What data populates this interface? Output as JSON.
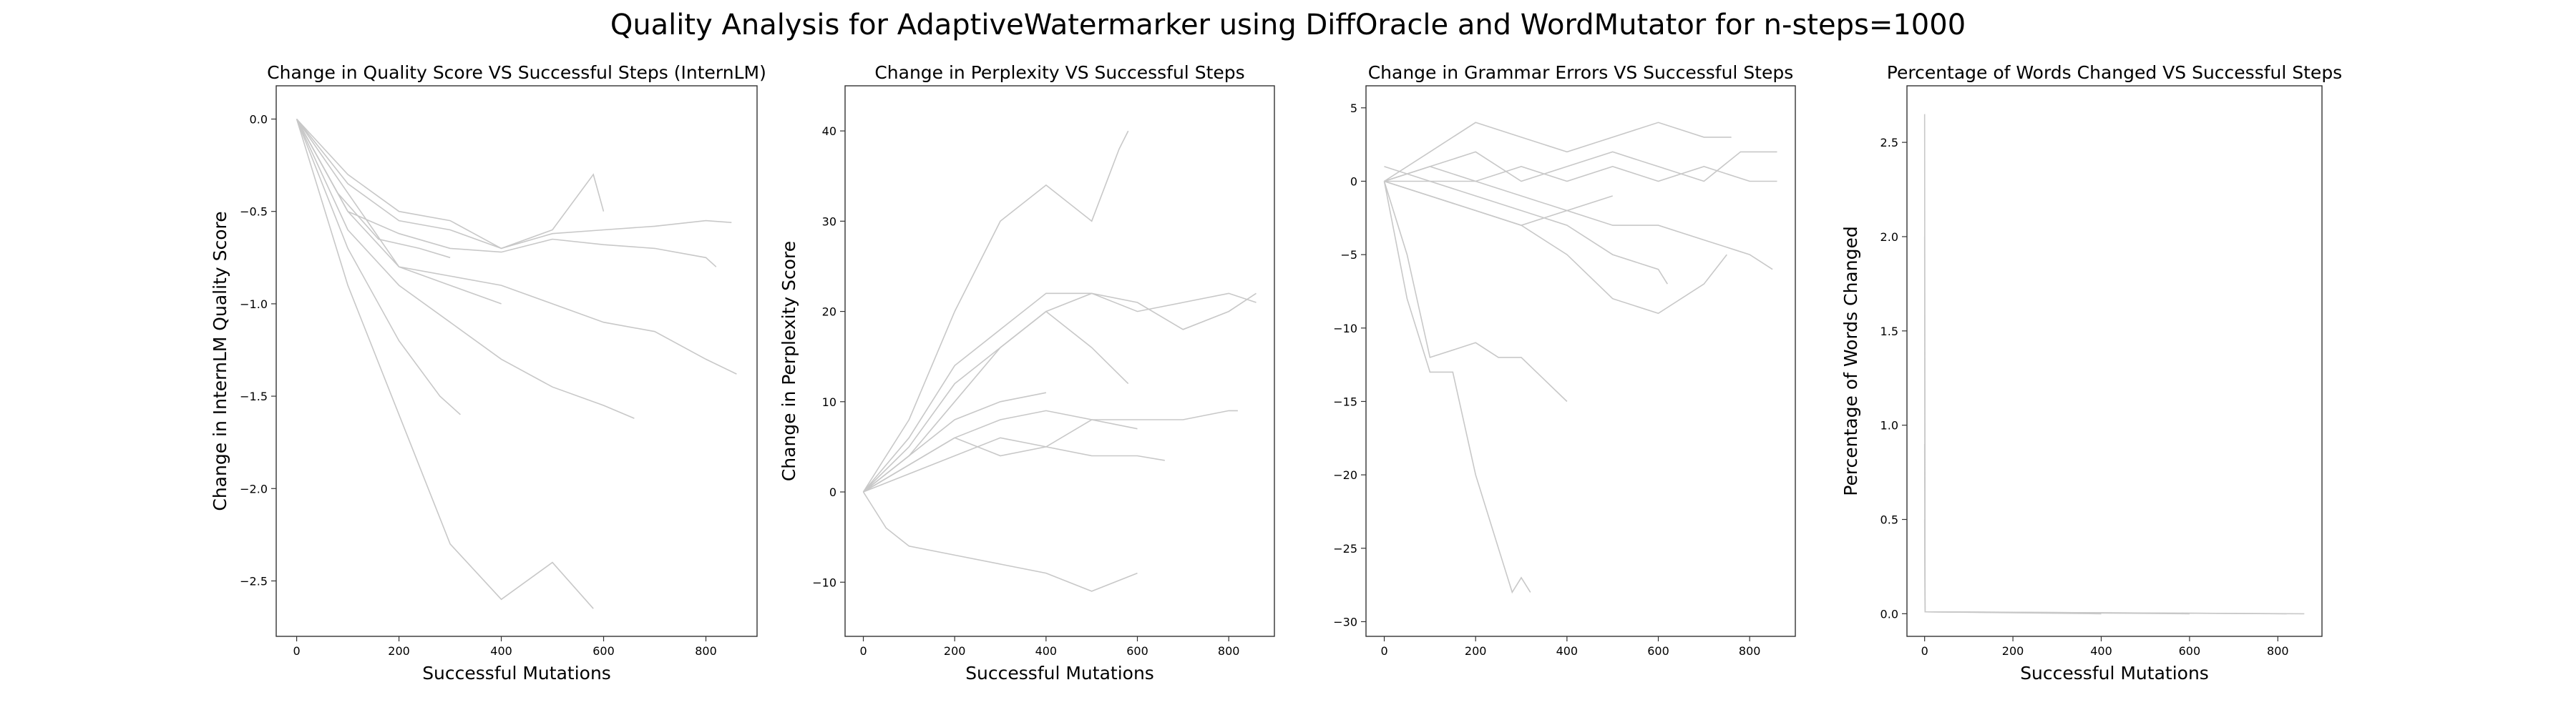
{
  "figure": {
    "title": "Quality Analysis for AdaptiveWatermarker using DiffOracle and WordMutator for n-steps=1000",
    "line_color": "#c8c8c8",
    "axes_color": "#333333"
  },
  "chart_data": [
    {
      "type": "line",
      "title": "Change in Quality Score VS Successful Steps (InternLM)",
      "xlabel": "Successful Mutations",
      "ylabel": "Change in InternLM Quality Score",
      "xlim": [
        -40,
        900
      ],
      "ylim": [
        -2.8,
        0.18
      ],
      "xticks": [
        0,
        200,
        400,
        600,
        800
      ],
      "yticks": [
        0.0,
        -0.5,
        -1.0,
        -1.5,
        -2.0,
        -2.5
      ],
      "ytick_labels": [
        "0.0",
        "−0.5",
        "−1.0",
        "−1.5",
        "−2.0",
        "−2.5"
      ],
      "series": [
        {
          "x": [
            0,
            100,
            200,
            300,
            400,
            500,
            600,
            700,
            800,
            850
          ],
          "y": [
            0,
            -0.35,
            -0.55,
            -0.6,
            -0.7,
            -0.62,
            -0.6,
            -0.58,
            -0.55,
            -0.56
          ]
        },
        {
          "x": [
            0,
            100,
            200,
            300,
            400,
            500,
            600,
            700,
            800,
            820
          ],
          "y": [
            0,
            -0.5,
            -0.62,
            -0.7,
            -0.72,
            -0.65,
            -0.68,
            -0.7,
            -0.75,
            -0.8
          ]
        },
        {
          "x": [
            0,
            100,
            200,
            300,
            400,
            500,
            600,
            700,
            800,
            860
          ],
          "y": [
            0,
            -0.4,
            -0.8,
            -0.85,
            -0.9,
            -1.0,
            -1.1,
            -1.15,
            -1.3,
            -1.38
          ]
        },
        {
          "x": [
            0,
            100,
            200,
            300,
            400,
            500,
            600,
            660
          ],
          "y": [
            0,
            -0.6,
            -0.9,
            -1.1,
            -1.3,
            -1.45,
            -1.55,
            -1.62
          ]
        },
        {
          "x": [
            0,
            100,
            200,
            300,
            400,
            500,
            580,
            600
          ],
          "y": [
            0,
            -0.3,
            -0.5,
            -0.55,
            -0.7,
            -0.6,
            -0.3,
            -0.5
          ]
        },
        {
          "x": [
            0,
            100,
            200,
            300,
            400,
            500,
            580
          ],
          "y": [
            0,
            -0.9,
            -1.6,
            -2.3,
            -2.6,
            -2.4,
            -2.65
          ]
        },
        {
          "x": [
            0,
            100,
            200,
            280,
            320
          ],
          "y": [
            0,
            -0.7,
            -1.2,
            -1.5,
            -1.6
          ]
        },
        {
          "x": [
            0,
            80,
            160,
            240,
            300
          ],
          "y": [
            0,
            -0.4,
            -0.65,
            -0.7,
            -0.75
          ]
        },
        {
          "x": [
            0,
            100,
            200,
            300,
            400
          ],
          "y": [
            0,
            -0.5,
            -0.8,
            -0.9,
            -1.0
          ]
        }
      ]
    },
    {
      "type": "line",
      "title": "Change in Perplexity VS Successful Steps",
      "xlabel": "Successful Mutations",
      "ylabel": "Change in Perplexity Score",
      "xlim": [
        -40,
        900
      ],
      "ylim": [
        -16,
        45
      ],
      "xticks": [
        0,
        200,
        400,
        600,
        800
      ],
      "yticks": [
        40,
        30,
        20,
        10,
        0,
        -10
      ],
      "ytick_labels": [
        "40",
        "30",
        "20",
        "10",
        "0",
        "−10"
      ],
      "series": [
        {
          "x": [
            0,
            100,
            200,
            300,
            400,
            500,
            560,
            580
          ],
          "y": [
            0,
            8,
            20,
            30,
            34,
            30,
            38,
            40
          ]
        },
        {
          "x": [
            0,
            100,
            200,
            300,
            400,
            500,
            600,
            700,
            800,
            860
          ],
          "y": [
            0,
            6,
            14,
            18,
            22,
            22,
            20,
            21,
            22,
            21
          ]
        },
        {
          "x": [
            0,
            100,
            200,
            300,
            400,
            500,
            600,
            700,
            800,
            860
          ],
          "y": [
            0,
            5,
            12,
            16,
            20,
            22,
            21,
            18,
            20,
            22
          ]
        },
        {
          "x": [
            0,
            100,
            200,
            300,
            400,
            500,
            580
          ],
          "y": [
            0,
            4,
            10,
            16,
            20,
            16,
            12
          ]
        },
        {
          "x": [
            0,
            100,
            200,
            300,
            400,
            500,
            600,
            700,
            800,
            820
          ],
          "y": [
            0,
            3,
            6,
            8,
            9,
            8,
            8,
            8,
            9,
            9
          ]
        },
        {
          "x": [
            0,
            100,
            200,
            300,
            400,
            500,
            600,
            660
          ],
          "y": [
            0,
            2,
            4,
            6,
            5,
            4,
            4,
            3.5
          ]
        },
        {
          "x": [
            0,
            100,
            200,
            300,
            400,
            500,
            600
          ],
          "y": [
            0,
            3,
            6,
            4,
            5,
            8,
            7
          ]
        },
        {
          "x": [
            0,
            50,
            100,
            200,
            300,
            400,
            500,
            600
          ],
          "y": [
            0,
            -4,
            -6,
            -7,
            -8,
            -9,
            -11,
            -9
          ]
        },
        {
          "x": [
            0,
            100,
            200,
            300,
            400
          ],
          "y": [
            0,
            4,
            8,
            10,
            11
          ]
        }
      ]
    },
    {
      "type": "line",
      "title": "Change in Grammar Errors VS Successful Steps",
      "xlabel": "",
      "ylabel": "",
      "xlim": [
        -40,
        900
      ],
      "ylim": [
        -31,
        6.5
      ],
      "xticks": [
        0,
        200,
        400,
        600,
        800
      ],
      "yticks": [
        5,
        0,
        -5,
        -10,
        -15,
        -20,
        -25,
        -30
      ],
      "ytick_labels": [
        "5",
        "0",
        "−5",
        "−10",
        "−15",
        "−20",
        "−25",
        "−30"
      ],
      "series": [
        {
          "x": [
            0,
            100,
            200,
            300,
            400,
            500,
            600,
            700,
            780,
            860
          ],
          "y": [
            0,
            1,
            2,
            0,
            1,
            2,
            1,
            0,
            2,
            2
          ]
        },
        {
          "x": [
            0,
            100,
            200,
            300,
            400,
            500,
            600,
            700,
            800,
            860
          ],
          "y": [
            1,
            0,
            0,
            1,
            0,
            1,
            0,
            1,
            0,
            0
          ]
        },
        {
          "x": [
            0,
            100,
            200,
            300,
            400,
            500,
            600,
            700,
            800,
            850
          ],
          "y": [
            0,
            -1,
            -2,
            -3,
            -2,
            -3,
            -3,
            -4,
            -5,
            -6
          ]
        },
        {
          "x": [
            0,
            100,
            200,
            300,
            400,
            500,
            600,
            700,
            760
          ],
          "y": [
            0,
            2,
            4,
            3,
            2,
            3,
            4,
            3,
            3
          ]
        },
        {
          "x": [
            0,
            100,
            200,
            300,
            400,
            500,
            600,
            700,
            750
          ],
          "y": [
            0,
            -1,
            -2,
            -3,
            -5,
            -8,
            -9,
            -7,
            -5
          ]
        },
        {
          "x": [
            0,
            100,
            200,
            300,
            400,
            500,
            600,
            620
          ],
          "y": [
            0,
            0,
            -1,
            -2,
            -3,
            -5,
            -6,
            -7
          ]
        },
        {
          "x": [
            0,
            50,
            100,
            200,
            250,
            300,
            400
          ],
          "y": [
            0,
            -5,
            -12,
            -11,
            -12,
            -12,
            -15
          ]
        },
        {
          "x": [
            0,
            50,
            100,
            150,
            200,
            250,
            280,
            300,
            320
          ],
          "y": [
            0,
            -8,
            -13,
            -13,
            -20,
            -25,
            -28,
            -27,
            -28
          ]
        },
        {
          "x": [
            0,
            100,
            200,
            300,
            400,
            500
          ],
          "y": [
            0,
            1,
            0,
            -1,
            -2,
            -1
          ]
        }
      ]
    },
    {
      "type": "line",
      "title": "Percentage of Words Changed VS Successful Steps",
      "xlabel": "Successful Mutations",
      "ylabel": "Percentage of Words Changed",
      "xlim": [
        -40,
        900
      ],
      "ylim": [
        -0.12,
        2.8
      ],
      "xticks": [
        0,
        200,
        400,
        600,
        800
      ],
      "yticks": [
        0.0,
        0.5,
        1.0,
        1.5,
        2.0,
        2.5
      ],
      "ytick_labels": [
        "0.0",
        "0.5",
        "1.0",
        "1.5",
        "2.0",
        "2.5"
      ],
      "series": [
        {
          "x": [
            0,
            1,
            2,
            860
          ],
          "y": [
            2.65,
            0.01,
            0.01,
            0.0
          ]
        },
        {
          "x": [
            0,
            1,
            2,
            820
          ],
          "y": [
            2.0,
            0.01,
            0.01,
            0.0
          ]
        },
        {
          "x": [
            0,
            1,
            2,
            600
          ],
          "y": [
            0.9,
            0.01,
            0.01,
            0.0
          ]
        },
        {
          "x": [
            0,
            1,
            2,
            400
          ],
          "y": [
            0.5,
            0.01,
            0.01,
            0.0
          ]
        }
      ]
    }
  ]
}
